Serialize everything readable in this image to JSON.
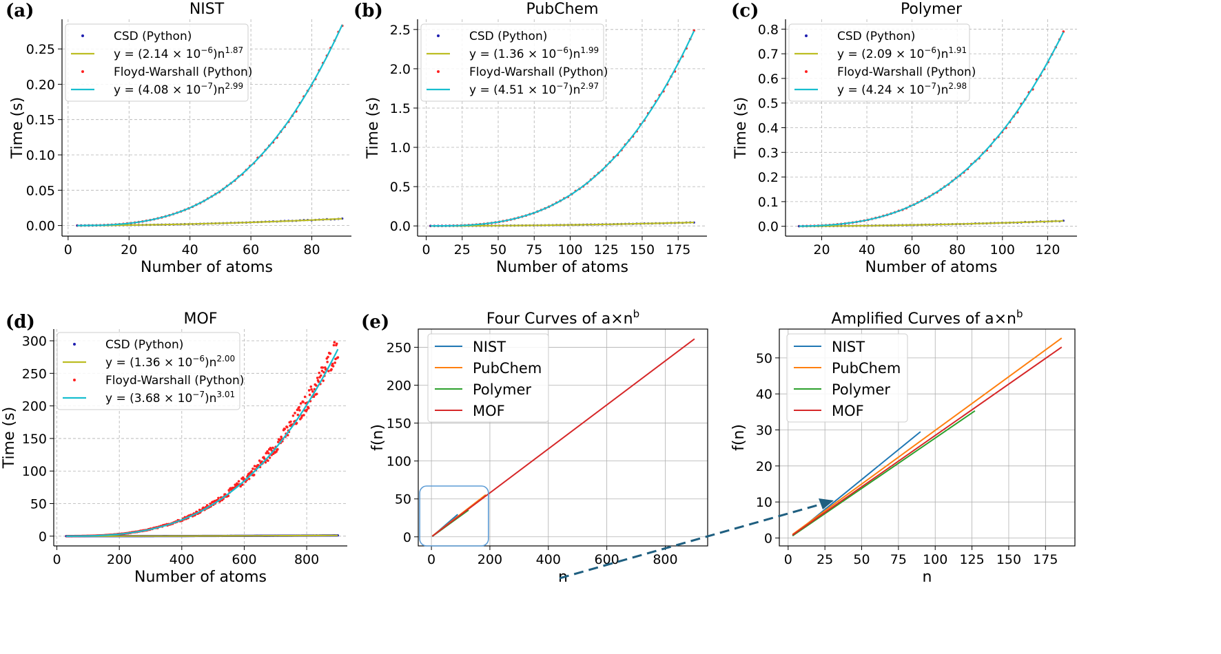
{
  "colors": {
    "csd_points": "#1f1fb0",
    "csd_fit": "#bcbd22",
    "fw_points": "#ff2020",
    "fw_fit": "#17becf",
    "nist": "#1f77b4",
    "pubchem": "#ff7f0e",
    "polymer": "#2ca02c",
    "mof": "#d62728",
    "zoom_box": "#5b9bd5",
    "arrow": "#1f5f80"
  },
  "chart_data": [
    {
      "id": "a",
      "panel_label": "(a)",
      "type": "scatter",
      "title": "NIST",
      "xlabel": "Number of atoms",
      "ylabel": "Time (s)",
      "xlim": [
        -2,
        93
      ],
      "ylim": [
        -0.015,
        0.292
      ],
      "xticks": [
        0,
        20,
        40,
        60,
        80
      ],
      "xtick_labels": [
        "0",
        "20",
        "40",
        "60",
        "80"
      ],
      "yticks": [
        0,
        0.05,
        0.1,
        0.15,
        0.2,
        0.25
      ],
      "ytick_labels": [
        "0.00",
        "0.05",
        "0.10",
        "0.15",
        "0.20",
        "0.25"
      ],
      "grid": true,
      "legend_position": "top-left",
      "n_range": [
        3,
        90
      ],
      "legend": [
        {
          "kind": "points",
          "color_key": "csd_points",
          "label": "CSD (Python)"
        },
        {
          "kind": "line",
          "color_key": "csd_fit",
          "label_prefix": "y = (2.14 × 10",
          "label_exp": "−6",
          "label_mid": ")n",
          "label_pow": "1.87"
        },
        {
          "kind": "points",
          "color_key": "fw_points",
          "label": "Floyd-Warshall (Python)"
        },
        {
          "kind": "line",
          "color_key": "fw_fit",
          "label_prefix": "y = (4.08 × 10",
          "label_exp": "−7",
          "label_mid": ")n",
          "label_pow": "2.99"
        }
      ],
      "series": [
        {
          "role": "csd_fit",
          "a": 2.14e-06,
          "b": 1.87
        },
        {
          "role": "fw_fit",
          "a": 4.08e-07,
          "b": 2.99
        }
      ]
    },
    {
      "id": "b",
      "panel_label": "(b)",
      "type": "scatter",
      "title": "PubChem",
      "xlabel": "Number of atoms",
      "ylabel": "Time (s)",
      "xlim": [
        -6,
        195
      ],
      "ylim": [
        -0.13,
        2.63
      ],
      "xticks": [
        0,
        25,
        50,
        75,
        100,
        125,
        150,
        175
      ],
      "xtick_labels": [
        "0",
        "25",
        "50",
        "75",
        "100",
        "125",
        "150",
        "175"
      ],
      "yticks": [
        0,
        0.5,
        1.0,
        1.5,
        2.0,
        2.5
      ],
      "ytick_labels": [
        "0.0",
        "0.5",
        "1.0",
        "1.5",
        "2.0",
        "2.5"
      ],
      "grid": true,
      "legend_position": "top-left",
      "n_range": [
        3,
        186
      ],
      "legend": [
        {
          "kind": "points",
          "color_key": "csd_points",
          "label": "CSD (Python)"
        },
        {
          "kind": "line",
          "color_key": "csd_fit",
          "label_prefix": "y = (1.36 × 10",
          "label_exp": "−6",
          "label_mid": ")n",
          "label_pow": "1.99"
        },
        {
          "kind": "points",
          "color_key": "fw_points",
          "label": "Floyd-Warshall (Python)"
        },
        {
          "kind": "line",
          "color_key": "fw_fit",
          "label_prefix": "y = (4.51 × 10",
          "label_exp": "−7",
          "label_mid": ")n",
          "label_pow": "2.97"
        }
      ],
      "series": [
        {
          "role": "csd_fit",
          "a": 1.36e-06,
          "b": 1.99
        },
        {
          "role": "fw_fit",
          "a": 4.51e-07,
          "b": 2.97
        }
      ]
    },
    {
      "id": "c",
      "panel_label": "(c)",
      "type": "scatter",
      "title": "Polymer",
      "xlabel": "Number of atoms",
      "ylabel": "Time (s)",
      "xlim": [
        4,
        133
      ],
      "ylim": [
        -0.04,
        0.84
      ],
      "xticks": [
        20,
        40,
        60,
        80,
        100,
        120
      ],
      "xtick_labels": [
        "20",
        "40",
        "60",
        "80",
        "100",
        "120"
      ],
      "yticks": [
        0,
        0.1,
        0.2,
        0.3,
        0.4,
        0.5,
        0.6,
        0.7,
        0.8
      ],
      "ytick_labels": [
        "0.0",
        "0.1",
        "0.2",
        "0.3",
        "0.4",
        "0.5",
        "0.6",
        "0.7",
        "0.8"
      ],
      "grid": true,
      "legend_position": "top-left",
      "n_range": [
        10,
        127
      ],
      "legend": [
        {
          "kind": "points",
          "color_key": "csd_points",
          "label": "CSD (Python)"
        },
        {
          "kind": "line",
          "color_key": "csd_fit",
          "label_prefix": "y = (2.09 × 10",
          "label_exp": "−6",
          "label_mid": ")n",
          "label_pow": "1.91"
        },
        {
          "kind": "points",
          "color_key": "fw_points",
          "label": "Floyd-Warshall (Python)"
        },
        {
          "kind": "line",
          "color_key": "fw_fit",
          "label_prefix": "y = (4.24 × 10",
          "label_exp": "−7",
          "label_mid": ")n",
          "label_pow": "2.98"
        }
      ],
      "series": [
        {
          "role": "csd_fit",
          "a": 2.09e-06,
          "b": 1.91
        },
        {
          "role": "fw_fit",
          "a": 4.24e-07,
          "b": 2.98
        }
      ]
    },
    {
      "id": "d",
      "panel_label": "(d)",
      "type": "scatter",
      "title": "MOF",
      "xlabel": "Number of atoms",
      "ylabel": "Time (s)",
      "xlim": [
        -10,
        930
      ],
      "ylim": [
        -15,
        318
      ],
      "xticks": [
        0,
        200,
        400,
        600,
        800
      ],
      "xtick_labels": [
        "0",
        "200",
        "400",
        "600",
        "800"
      ],
      "yticks": [
        0,
        50,
        100,
        150,
        200,
        250,
        300
      ],
      "ytick_labels": [
        "0",
        "50",
        "100",
        "150",
        "200",
        "250",
        "300"
      ],
      "grid": true,
      "legend_position": "top-left",
      "n_range": [
        30,
        900
      ],
      "legend": [
        {
          "kind": "points",
          "color_key": "csd_points",
          "label": "CSD (Python)"
        },
        {
          "kind": "line",
          "color_key": "csd_fit",
          "label_prefix": "y = (1.36 × 10",
          "label_exp": "−6",
          "label_mid": ")n",
          "label_pow": "2.00"
        },
        {
          "kind": "points",
          "color_key": "fw_points",
          "label": "Floyd-Warshall (Python)"
        },
        {
          "kind": "line",
          "color_key": "fw_fit",
          "label_prefix": "y = (3.68 × 10",
          "label_exp": "−7",
          "label_mid": ")n",
          "label_pow": "3.01"
        }
      ],
      "series": [
        {
          "role": "csd_fit",
          "a": 1.36e-06,
          "b": 2.0
        },
        {
          "role": "fw_fit",
          "a": 3.68e-07,
          "b": 3.01
        }
      ]
    },
    {
      "id": "e1",
      "panel_label": "(e)",
      "type": "line",
      "title_prefix": "Four Curves of a×n",
      "title_sup": "b",
      "xlabel": "n",
      "ylabel": "f(n)",
      "xlim": [
        -45,
        945
      ],
      "ylim": [
        -12,
        274
      ],
      "xticks": [
        0,
        200,
        400,
        600,
        800
      ],
      "xtick_labels": [
        "0",
        "200",
        "400",
        "600",
        "800"
      ],
      "yticks": [
        0,
        50,
        100,
        150,
        200,
        250
      ],
      "ytick_labels": [
        "0",
        "50",
        "100",
        "150",
        "200",
        "250"
      ],
      "grid": true,
      "legend_position": "top-left",
      "series": [
        {
          "name": "NIST",
          "color_key": "nist",
          "x": [
            3,
            90
          ],
          "y": [
            0.6,
            29.5
          ]
        },
        {
          "name": "PubChem",
          "color_key": "pubchem",
          "x": [
            3,
            186
          ],
          "y": [
            1.0,
            55.5
          ]
        },
        {
          "name": "Polymer",
          "color_key": "polymer",
          "x": [
            3,
            127
          ],
          "y": [
            0.6,
            35.3
          ]
        },
        {
          "name": "MOF",
          "color_key": "mof",
          "x": [
            3,
            900
          ],
          "y": [
            0.8,
            261
          ]
        }
      ],
      "zoom_box": {
        "x": [
          -40,
          195
        ],
        "y": [
          -12,
          67
        ]
      }
    },
    {
      "id": "e2",
      "type": "line",
      "title_prefix": "Amplified Curves of a×n",
      "title_sup": "b",
      "xlabel": "n",
      "ylabel": "f(n)",
      "xlim": [
        -6,
        195
      ],
      "ylim": [
        -2.2,
        58
      ],
      "xticks": [
        0,
        25,
        50,
        75,
        100,
        125,
        150,
        175
      ],
      "xtick_labels": [
        "0",
        "25",
        "50",
        "75",
        "100",
        "125",
        "150",
        "175"
      ],
      "yticks": [
        0,
        10,
        20,
        30,
        40,
        50
      ],
      "ytick_labels": [
        "0",
        "10",
        "20",
        "30",
        "40",
        "50"
      ],
      "grid": true,
      "legend_position": "top-left",
      "series": [
        {
          "name": "NIST",
          "color_key": "nist",
          "x": [
            3,
            90
          ],
          "y": [
            0.6,
            29.5
          ]
        },
        {
          "name": "PubChem",
          "color_key": "pubchem",
          "x": [
            3,
            186
          ],
          "y": [
            1.0,
            55.5
          ]
        },
        {
          "name": "Polymer",
          "color_key": "polymer",
          "x": [
            3,
            127
          ],
          "y": [
            0.6,
            35.3
          ]
        },
        {
          "name": "MOF",
          "color_key": "mof",
          "x": [
            3,
            186
          ],
          "y": [
            0.8,
            53.0
          ]
        }
      ]
    }
  ]
}
